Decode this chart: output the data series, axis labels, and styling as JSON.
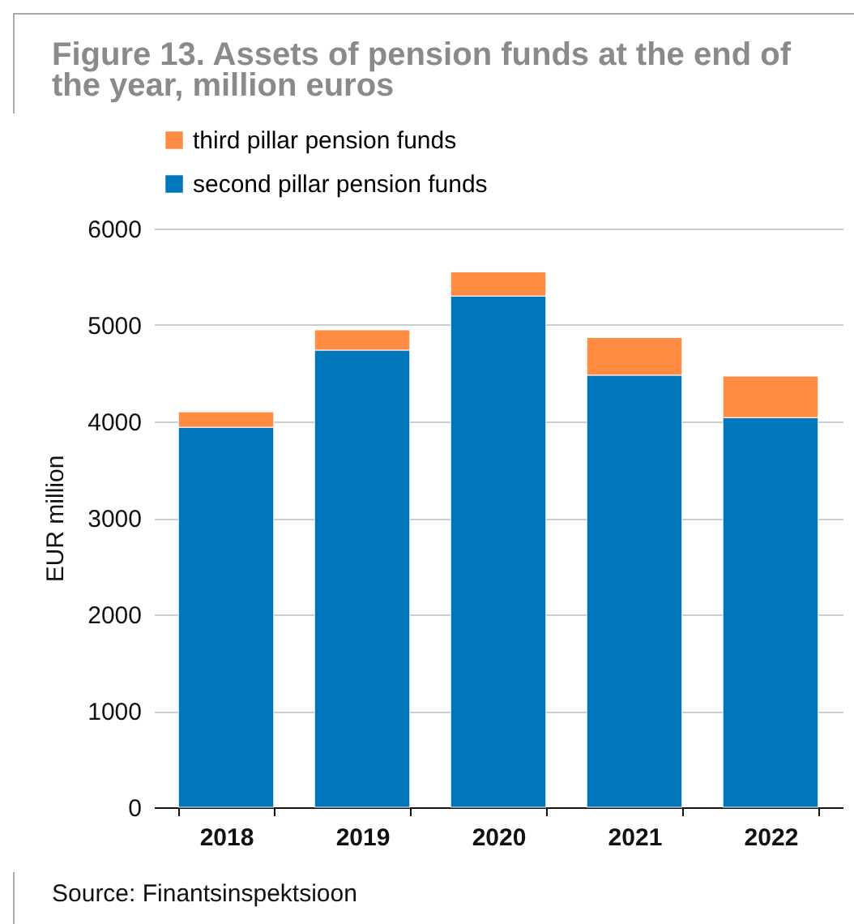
{
  "chart_data": {
    "type": "bar",
    "title": "Figure 13. Assets of pension funds at the end of the year, million euros",
    "ylabel": "EUR million",
    "categories": [
      "2018",
      "2019",
      "2020",
      "2021",
      "2022"
    ],
    "stacked": true,
    "series": [
      {
        "name": "second pillar pension funds",
        "color": "#0077bb",
        "values": [
          3940,
          4740,
          5300,
          4480,
          4040
        ]
      },
      {
        "name": "third pillar pension funds",
        "color": "#ff8c42",
        "values": [
          160,
          210,
          250,
          390,
          430
        ]
      }
    ],
    "ylim": [
      0,
      6000
    ],
    "yticks": [
      0,
      1000,
      2000,
      3000,
      4000,
      5000,
      6000
    ],
    "grid": "y",
    "legend": "top left",
    "annotations": [
      "Source: Finantsinspektsioon"
    ]
  }
}
